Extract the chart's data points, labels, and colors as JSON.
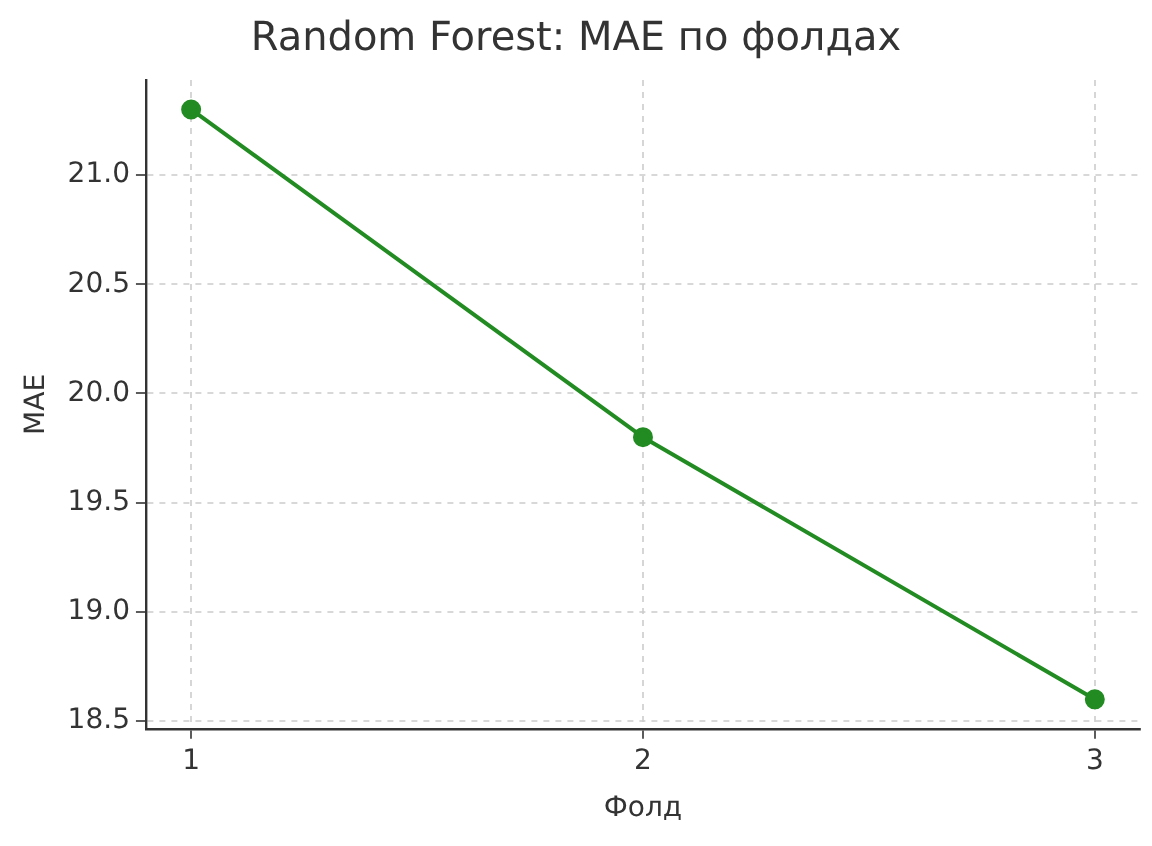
{
  "chart_data": {
    "type": "line",
    "title": "Random Forest: MAE по фолдах",
    "xlabel": "Фолд",
    "ylabel": "MAE",
    "x": [
      1,
      2,
      3
    ],
    "series": [
      {
        "color": "#228b22",
        "values": [
          21.3,
          19.8,
          18.6
        ]
      }
    ],
    "xlim": [
      0.9,
      3.1
    ],
    "xticks": [
      1,
      2,
      3
    ],
    "ylim": [
      18.465,
      21.435
    ],
    "yticks": [
      {
        "value": 18.5,
        "label": "18.5"
      },
      {
        "value": 19.0,
        "label": "19.0"
      },
      {
        "value": 19.5,
        "label": "19.5"
      },
      {
        "value": 20.0,
        "label": "20.0"
      },
      {
        "value": 20.5,
        "label": "20.5"
      },
      {
        "value": 21.0,
        "label": "21.0"
      }
    ],
    "grid": true,
    "legend": false,
    "marker": "circle",
    "line_style": "solid"
  }
}
